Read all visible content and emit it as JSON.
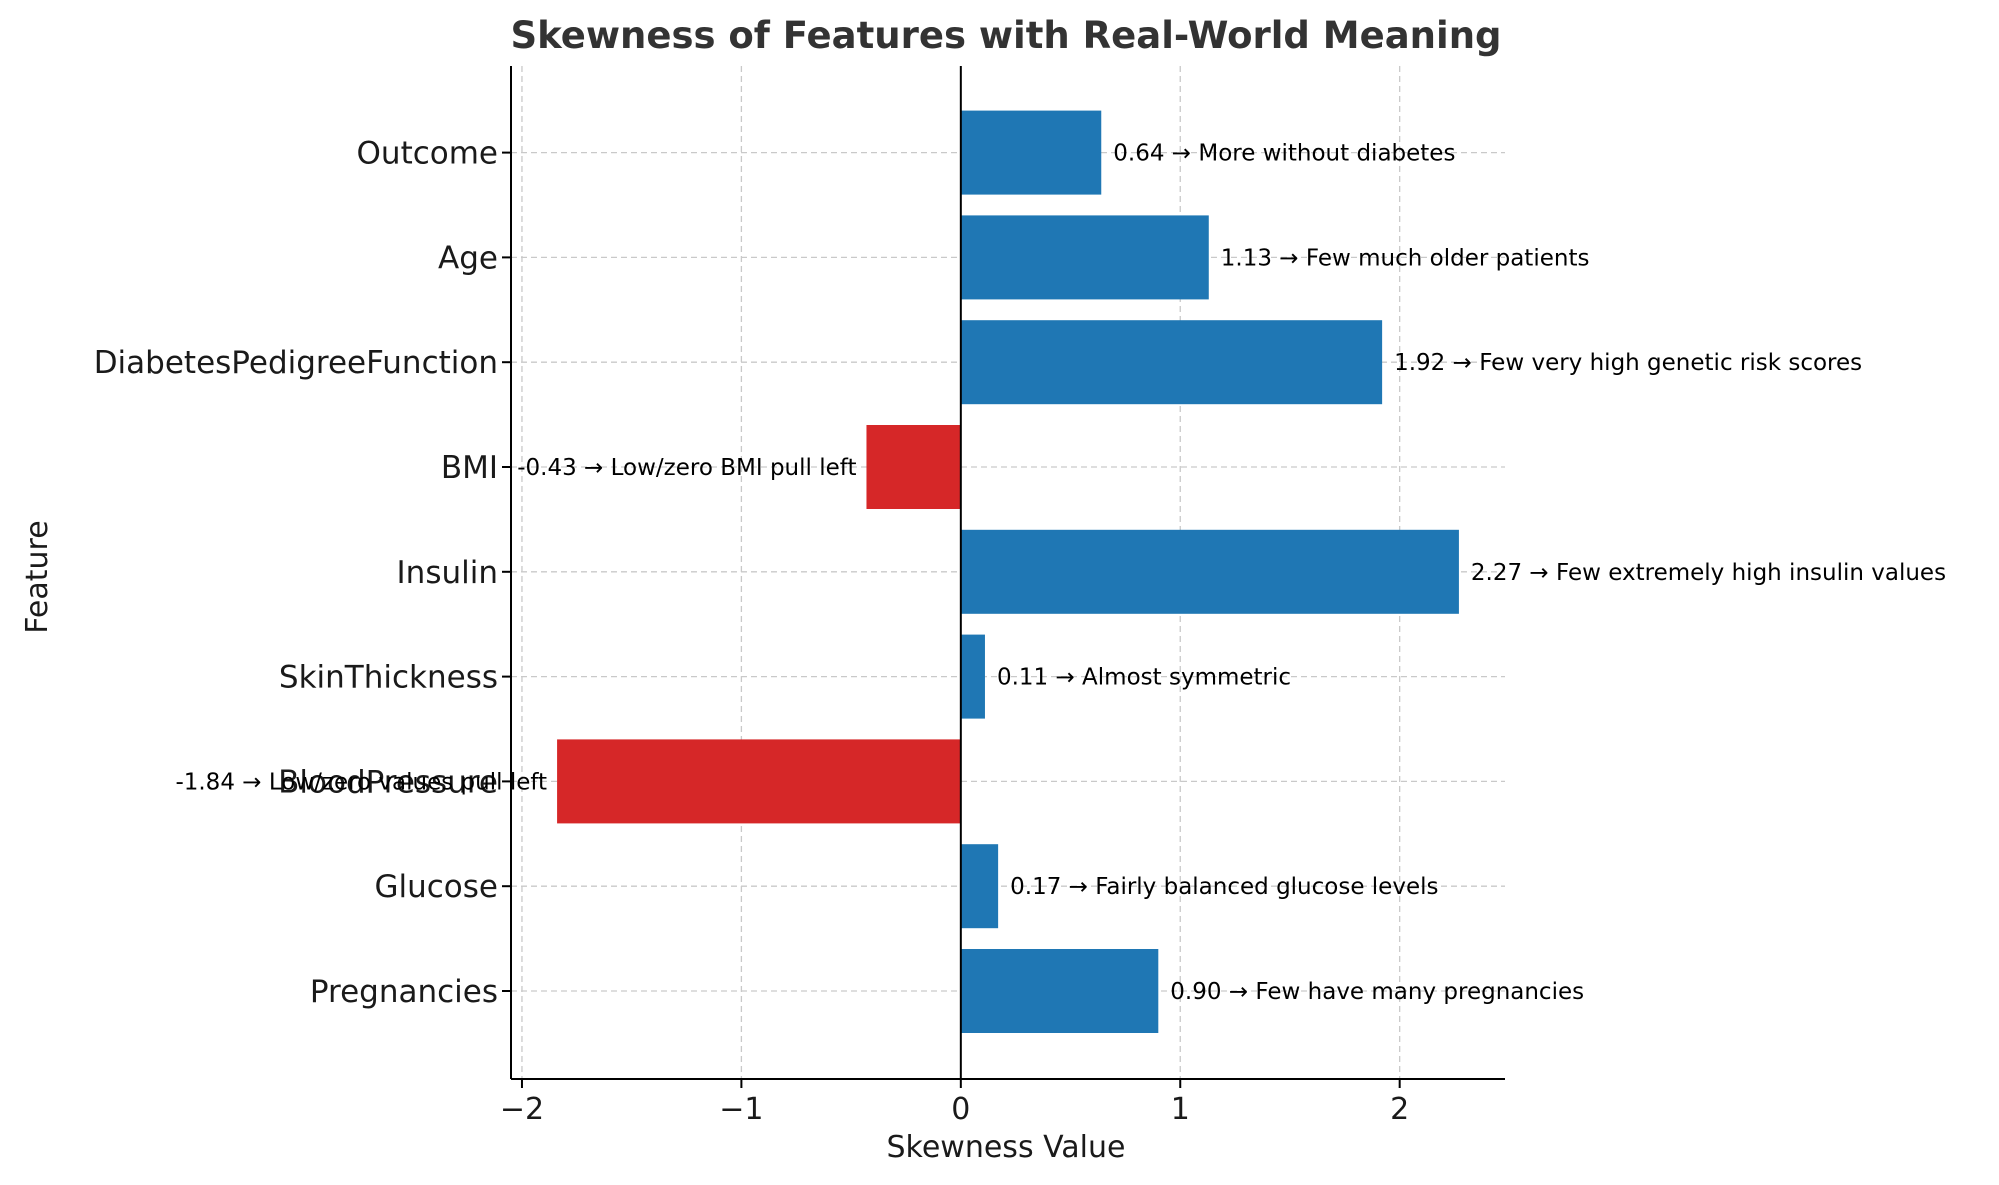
{
  "chart_data": {
    "type": "bar",
    "orientation": "horizontal",
    "title": "Skewness of Features with Real-World Meaning",
    "xlabel": "Skewness Value",
    "ylabel": "Feature",
    "xlim": [
      -2.05,
      2.48
    ],
    "xticks": [
      -2,
      -1,
      0,
      1,
      2
    ],
    "xtick_labels": [
      "−2",
      "−1",
      "0",
      "1",
      "2"
    ],
    "grid": true,
    "positive_color": "#1f77b4",
    "negative_color": "#d62728",
    "categories": [
      "Pregnancies",
      "Glucose",
      "BloodPressure",
      "SkinThickness",
      "Insulin",
      "BMI",
      "DiabetesPedigreeFunction",
      "Age",
      "Outcome"
    ],
    "values": [
      0.9,
      0.17,
      -1.84,
      0.11,
      2.27,
      -0.43,
      1.92,
      1.13,
      0.64
    ],
    "annotations": [
      "0.90 → Few have many pregnancies",
      "0.17 → Fairly balanced glucose levels",
      "-1.84 → Low/zero values pull left",
      "0.11 → Almost symmetric",
      "2.27 → Few extremely high insulin values",
      "-0.43 → Low/zero BMI pull left",
      "1.92 → Few very high genetic risk scores",
      "1.13 → Few much older patients",
      "0.64 → More without diabetes"
    ]
  }
}
